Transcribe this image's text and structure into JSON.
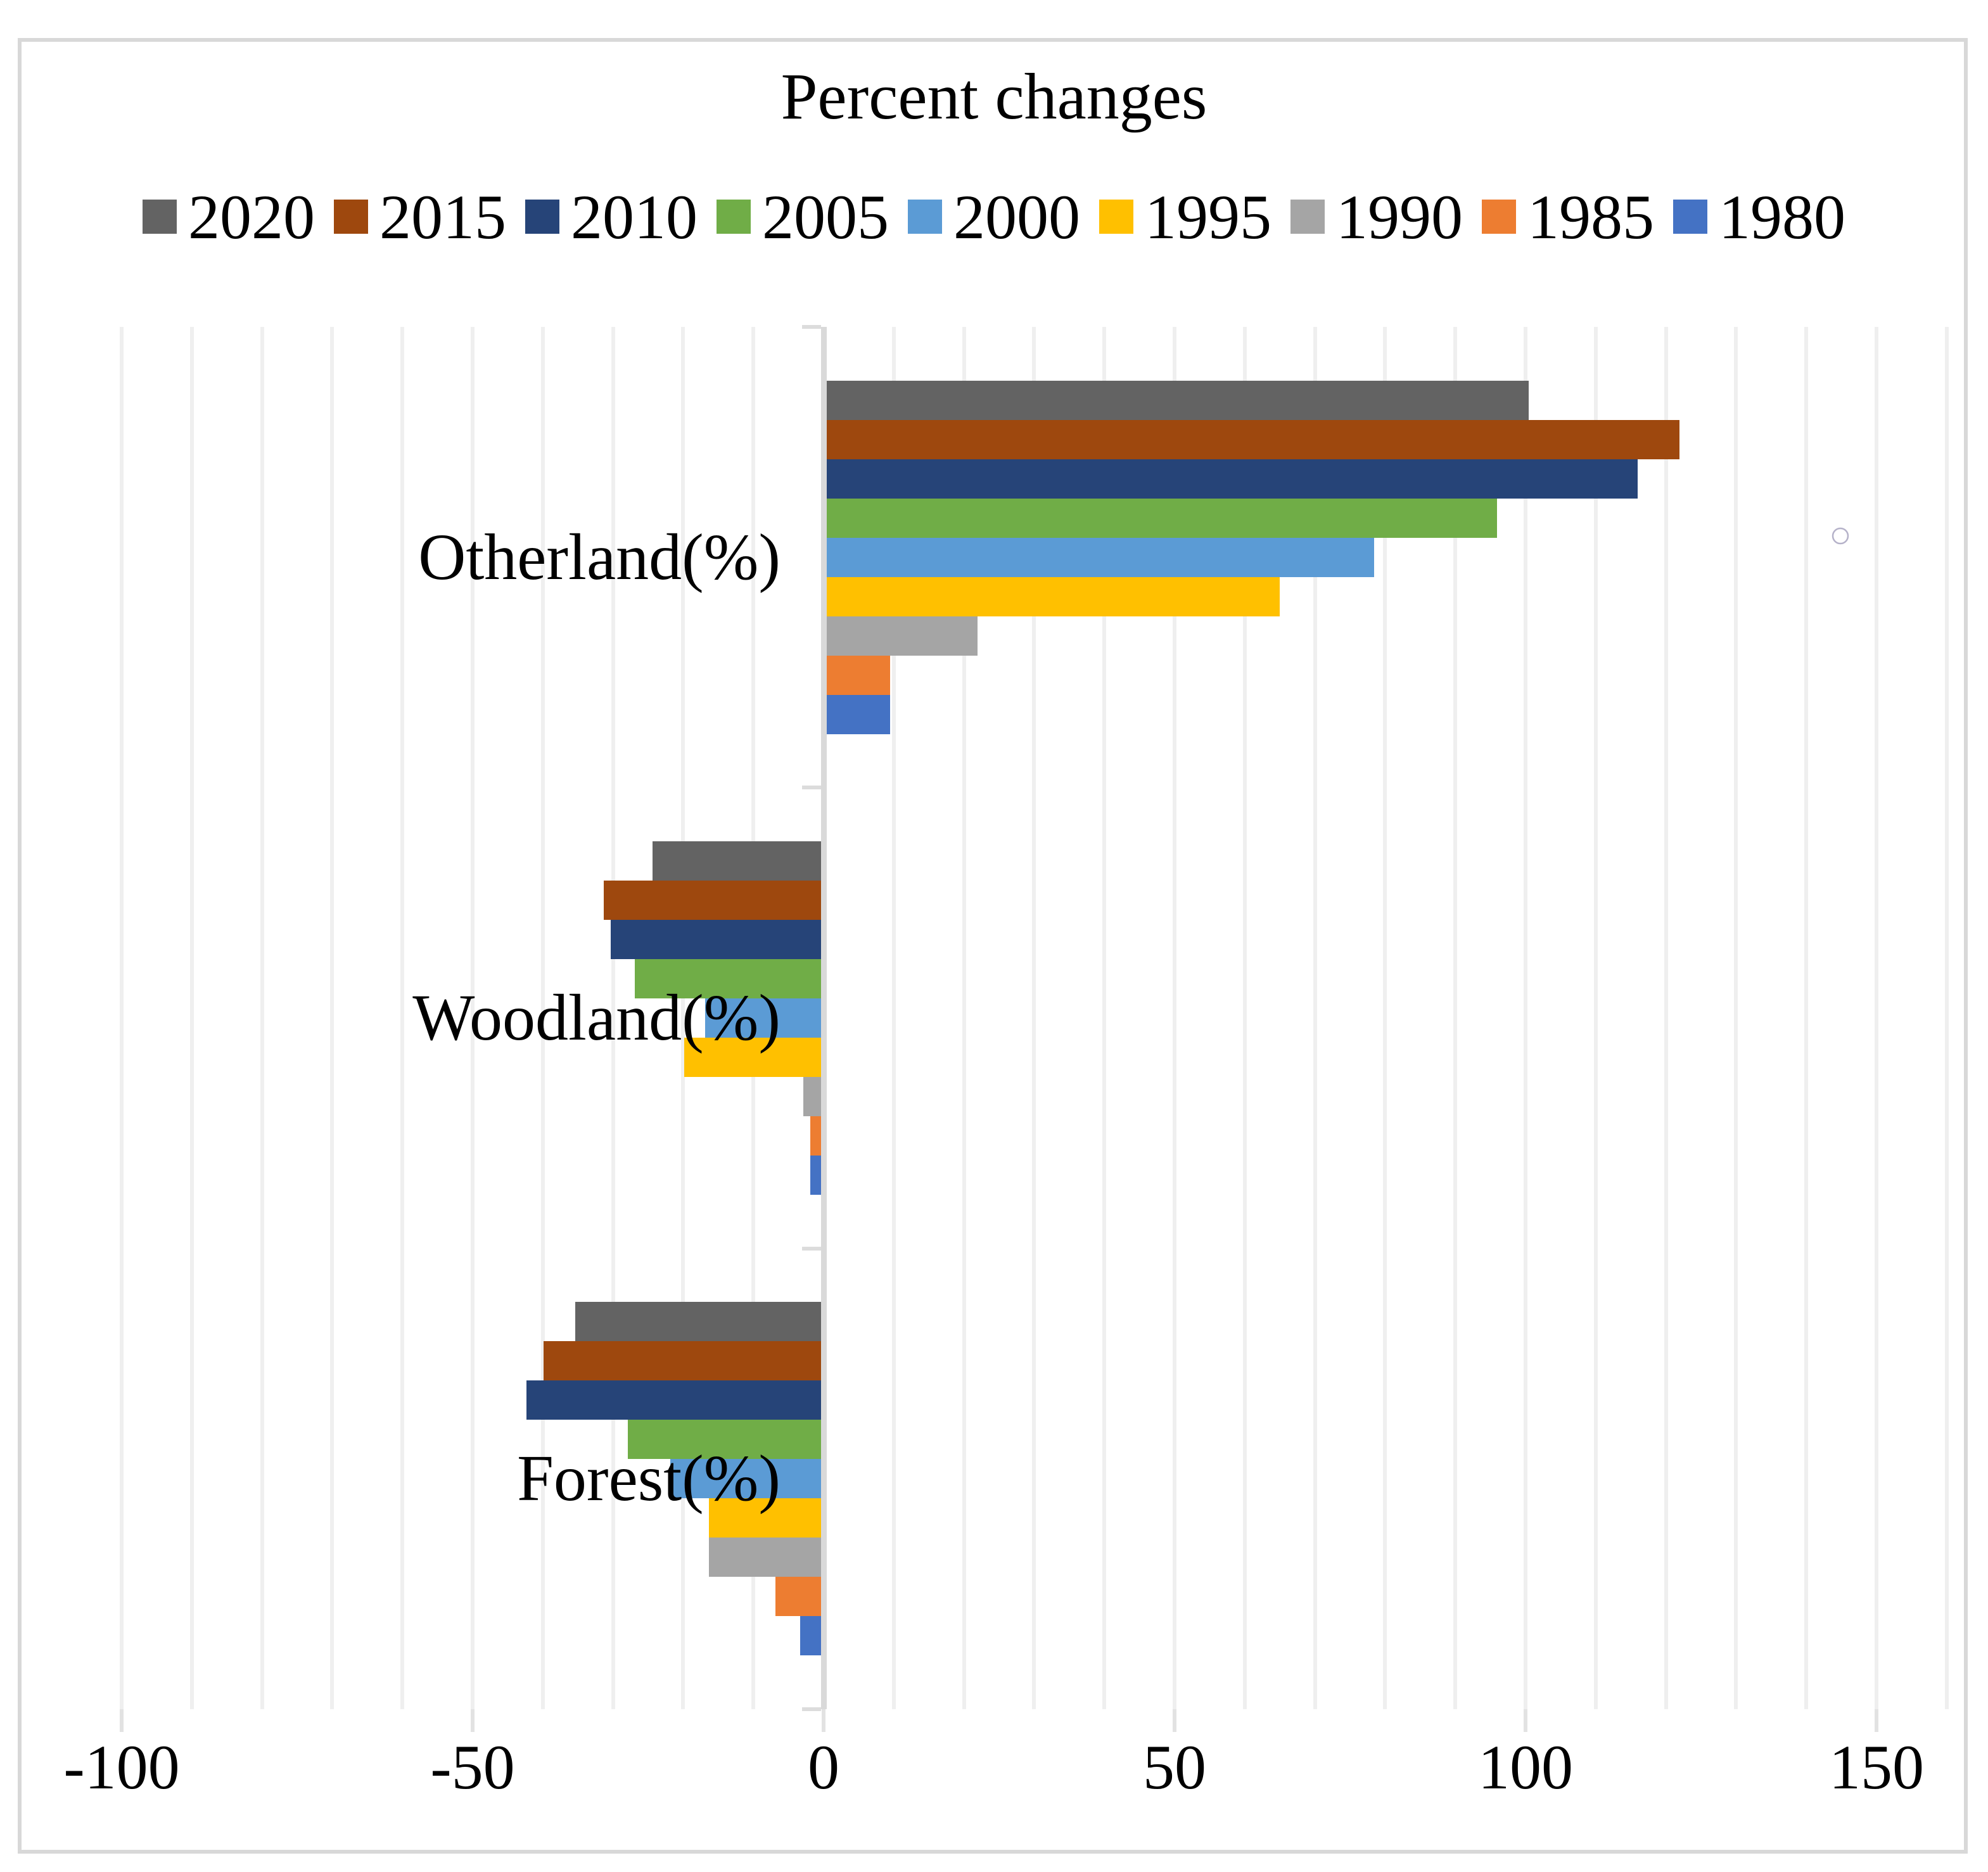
{
  "chart_data": {
    "type": "bar",
    "orientation": "horizontal",
    "title": "Percent changes",
    "categories": [
      "Otherland(%)",
      "Woodland(%)",
      "Forest(%)"
    ],
    "series": [
      {
        "name": "2020",
        "color": "#636363",
        "values": [
          100,
          -24,
          -35
        ]
      },
      {
        "name": "2015",
        "color": "#9E480E",
        "values": [
          121.5,
          -31,
          -39.5
        ]
      },
      {
        "name": "2010",
        "color": "#264478",
        "values": [
          115.5,
          -30,
          -42
        ]
      },
      {
        "name": "2005",
        "color": "#70AD47",
        "values": [
          95.5,
          -26.5,
          -27.5
        ]
      },
      {
        "name": "2000",
        "color": "#5B9BD5",
        "values": [
          78,
          -16.5,
          -21.5
        ]
      },
      {
        "name": "1995",
        "color": "#FFC000",
        "values": [
          64.5,
          -19.5,
          -16
        ]
      },
      {
        "name": "1990",
        "color": "#A5A5A5",
        "values": [
          21.5,
          -2.5,
          -16
        ]
      },
      {
        "name": "1985",
        "color": "#ED7D31",
        "values": [
          9,
          -1.5,
          -6.5
        ]
      },
      {
        "name": "1980",
        "color": "#4472C4",
        "values": [
          9,
          -1.5,
          -3
        ]
      }
    ],
    "x_axis": {
      "min": -100,
      "max": 160,
      "grid_step": 10,
      "tick_values": [
        -100,
        -50,
        0,
        50,
        100,
        150
      ],
      "tick_labels": [
        "-100",
        "-50",
        "0",
        "50",
        "100",
        "150"
      ]
    },
    "legend_position": "top",
    "grid": "vertical-minor-on",
    "colors": {
      "gridline": "#efefef",
      "category_axis_line": "#d9d9d9",
      "frame_border": "#d8d8d8",
      "stray_circle_stroke": "#b5b2c9"
    }
  }
}
